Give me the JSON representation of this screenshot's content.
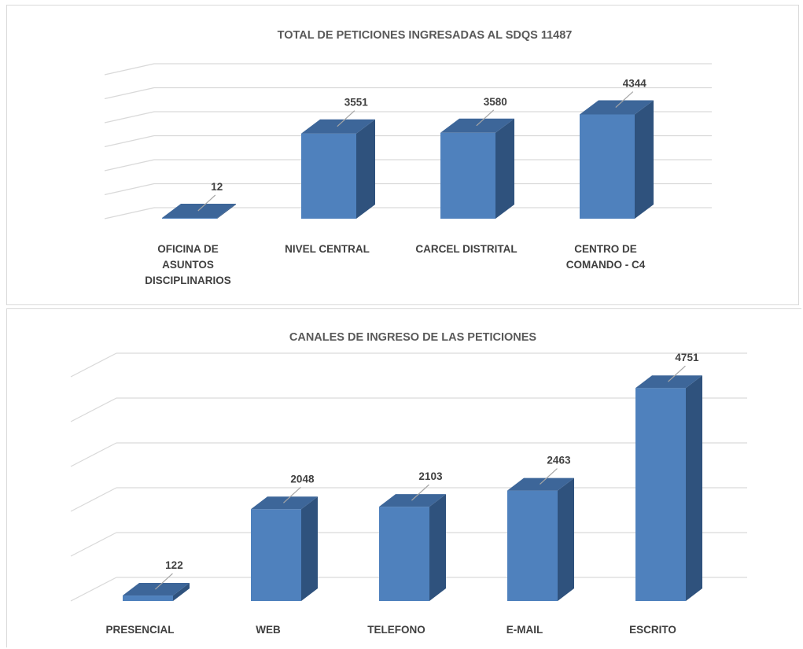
{
  "colors": {
    "bar_front": "#4f81bd",
    "bar_side": "#2f527d",
    "bar_top": "#3d6699",
    "grid": "#d9d9d9",
    "text": "#404040",
    "title": "#595959"
  },
  "chart_data": [
    {
      "type": "bar",
      "title": "TOTAL DE PETICIONES INGRESADAS AL SDQS 11487",
      "categories": [
        [
          "OFICINA DE",
          "ASUNTOS",
          "DISCIPLINARIOS"
        ],
        [
          "NIVEL CENTRAL"
        ],
        [
          "CARCEL DISTRITAL"
        ],
        [
          "CENTRO DE",
          "COMANDO - C4"
        ]
      ],
      "values": [
        12,
        3551,
        3580,
        4344
      ],
      "value_labels": [
        "12",
        "3551",
        "3580",
        "4344"
      ],
      "style": "3d-column",
      "grid": true,
      "ylim": [
        0,
        6000
      ]
    },
    {
      "type": "bar",
      "title": "CANALES DE INGRESO DE LAS PETICIONES",
      "categories": [
        [
          "PRESENCIAL"
        ],
        [
          "WEB"
        ],
        [
          "TELEFONO"
        ],
        [
          "E-MAIL"
        ],
        [
          "ESCRITO"
        ]
      ],
      "values": [
        122,
        2048,
        2103,
        2463,
        4751
      ],
      "value_labels": [
        "122",
        "2048",
        "2103",
        "2463",
        "4751"
      ],
      "style": "3d-column",
      "grid": true,
      "ylim": [
        0,
        5000
      ]
    }
  ]
}
